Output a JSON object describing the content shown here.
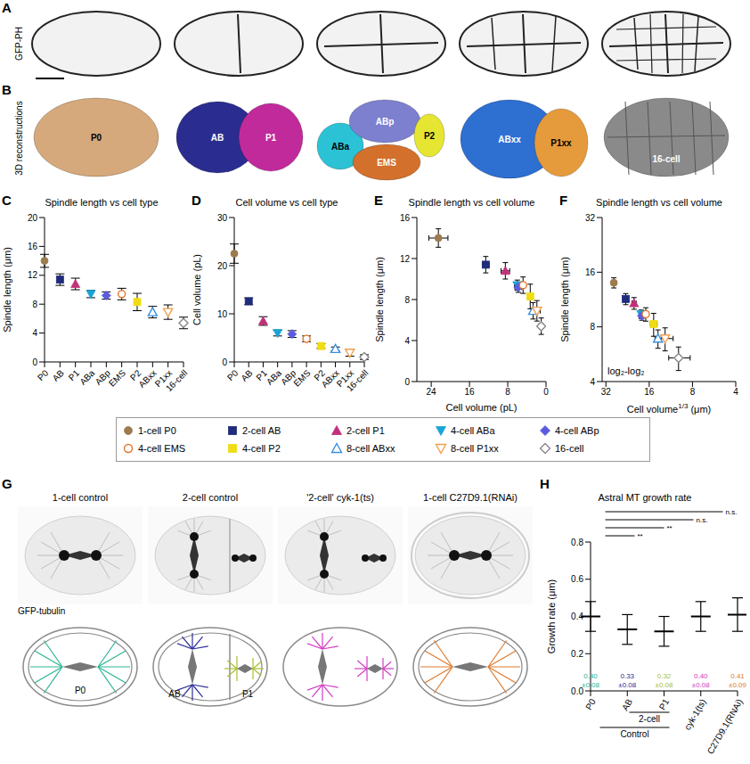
{
  "panel_letters": [
    "A",
    "B",
    "C",
    "D",
    "E",
    "F",
    "G",
    "H"
  ],
  "A": {
    "row_label": "GFP-PH"
  },
  "B": {
    "row_label": "3D reconstructions",
    "images": [
      [
        {
          "text": "P0",
          "color": "#d6a97c"
        }
      ],
      [
        {
          "text": "AB",
          "color": "#2a2d8f"
        },
        {
          "text": "P1",
          "color": "#c02a9b"
        }
      ],
      [
        {
          "text": "ABa",
          "color": "#2cc2d6"
        },
        {
          "text": "ABp",
          "color": "#7d80cf"
        },
        {
          "text": "EMS",
          "color": "#d3702b"
        },
        {
          "text": "P2",
          "color": "#e6e632"
        }
      ],
      [
        {
          "text": "ABxx",
          "color": "#2e6fd2"
        },
        {
          "text": "P1xx",
          "color": "#e59a3c"
        }
      ],
      [
        {
          "text": "16-cell",
          "color": "#8a8a8a"
        }
      ]
    ]
  },
  "legend": {
    "items": [
      {
        "name": "1-cell P0",
        "color": "#9c7b4f",
        "marker": "circle"
      },
      {
        "name": "2-cell AB",
        "color": "#1f2b7b",
        "marker": "square"
      },
      {
        "name": "2-cell P1",
        "color": "#c2307a",
        "marker": "triangle"
      },
      {
        "name": "4-cell ABa",
        "color": "#1aa3d6",
        "marker": "triangle-down"
      },
      {
        "name": "4-cell ABp",
        "color": "#5b5be0",
        "marker": "diamond"
      },
      {
        "name": "4-cell EMS",
        "color": "#e0742c",
        "marker": "circle-open"
      },
      {
        "name": "4-cell P2",
        "color": "#f0dc14",
        "marker": "square"
      },
      {
        "name": "8-cell ABxx",
        "color": "#3a8fe0",
        "marker": "triangle-open"
      },
      {
        "name": "8-cell P1xx",
        "color": "#f0a050",
        "marker": "triangle-down-open"
      },
      {
        "name": "16-cell",
        "color": "#888888",
        "marker": "diamond-open"
      }
    ]
  },
  "chart_data": [
    {
      "type": "scatter",
      "title": "Spindle length vs cell type",
      "ylabel": "Spindle length (μm)",
      "categories": [
        "P0",
        "AB",
        "P1",
        "ABa",
        "ABp",
        "EMS",
        "P2",
        "ABxx",
        "P1xx",
        "16-cell"
      ],
      "values": [
        14.0,
        11.4,
        10.8,
        9.4,
        9.2,
        9.4,
        8.3,
        6.9,
        6.9,
        5.4
      ],
      "errors": [
        0.9,
        0.8,
        0.8,
        0.5,
        0.5,
        0.8,
        1.2,
        0.8,
        1.0,
        0.8
      ],
      "ylim": [
        0,
        20
      ],
      "yticks": [
        0,
        4,
        8,
        12,
        16,
        20
      ]
    },
    {
      "type": "scatter",
      "title": "Cell volume vs cell type",
      "ylabel": "Cell volume (pL)",
      "categories": [
        "P0",
        "AB",
        "P1",
        "ABa",
        "ABp",
        "EMS",
        "P2",
        "ABxx",
        "P1xx",
        "16-cell"
      ],
      "values": [
        22.5,
        12.6,
        8.5,
        6.0,
        5.8,
        4.8,
        3.3,
        2.7,
        1.9,
        1.0
      ],
      "errors": [
        2.0,
        0.7,
        0.9,
        0.6,
        0.7,
        0.6,
        0.5,
        0.4,
        0.7,
        0.5
      ],
      "ylim": [
        0,
        30
      ],
      "yticks": [
        0,
        10,
        20,
        30
      ]
    },
    {
      "type": "scatter",
      "title": "Spindle length vs cell volume",
      "xlabel": "Cell volume (pL)",
      "ylabel": "Spindle length (μm)",
      "x": [
        22.5,
        12.6,
        8.5,
        6.0,
        5.8,
        4.8,
        3.3,
        2.7,
        1.9,
        1.0
      ],
      "x_err": [
        2.0,
        0.7,
        0.9,
        0.6,
        0.7,
        0.6,
        0.5,
        0.4,
        0.7,
        0.5
      ],
      "values": [
        14.0,
        11.4,
        10.8,
        9.4,
        9.2,
        9.4,
        8.3,
        6.9,
        6.9,
        5.4
      ],
      "y_err": [
        0.9,
        0.8,
        0.8,
        0.5,
        0.5,
        0.8,
        1.2,
        0.8,
        1.0,
        0.8
      ],
      "xlim": [
        27,
        0
      ],
      "xticks": [
        24,
        16,
        8,
        0
      ],
      "ylim": [
        0,
        16
      ],
      "yticks": [
        0,
        4,
        8,
        12,
        16
      ]
    },
    {
      "type": "scatter",
      "title": "Spindle length vs cell volume",
      "xlabel": {
        "text": "Cell volume",
        "superscript": "1/3",
        "unit": "(μm)"
      },
      "ylabel": "Spindle length (μm)",
      "annotation": "log₂-log₂",
      "log": true,
      "x": [
        28.2,
        23.3,
        20.4,
        18.2,
        18.0,
        16.9,
        14.9,
        13.9,
        12.4,
        10.0
      ],
      "x_err": [
        0.8,
        0.4,
        0.7,
        0.6,
        0.7,
        0.7,
        0.8,
        0.7,
        1.5,
        1.7
      ],
      "values": [
        14.0,
        11.4,
        10.8,
        9.4,
        9.2,
        9.4,
        8.3,
        6.9,
        6.9,
        5.4
      ],
      "y_err": [
        0.9,
        0.8,
        0.8,
        0.5,
        0.5,
        0.8,
        1.2,
        0.8,
        1.0,
        0.8
      ],
      "xlim": [
        34,
        4
      ],
      "xticks": [
        32,
        16,
        8,
        4
      ],
      "ylim": [
        4,
        32
      ],
      "yticks": [
        4,
        8,
        16,
        32
      ]
    },
    {
      "type": "scatter",
      "title": "Astral MT growth rate",
      "ylabel": "Growth rate (μm)",
      "marker": "line",
      "categories": [
        "P0",
        "AB",
        "P1",
        "cyk-1(ts)",
        "C27D9.1(RNAi)"
      ],
      "values": [
        0.4,
        0.33,
        0.32,
        0.4,
        0.41
      ],
      "errors": [
        0.08,
        0.08,
        0.08,
        0.08,
        0.09
      ],
      "value_labels": [
        "0.40",
        "0.33",
        "0.32",
        "0.40",
        "0.41"
      ],
      "error_labels": [
        "±0.08",
        "±0.08",
        "±0.08",
        "±0.08",
        "±0.09"
      ],
      "colors": [
        "#2bb596",
        "#2d2d9b",
        "#a9be2c",
        "#d23cc4",
        "#e07a2e"
      ],
      "ylim": [
        0,
        0.8
      ],
      "yticks": [
        {
          "value": 0,
          "label": "0.0"
        },
        {
          "value": 0.2,
          "label": "0.2"
        },
        {
          "value": 0.4,
          "label": "0.4"
        },
        {
          "value": 0.6,
          "label": "0.6"
        },
        {
          "value": 0.8,
          "label": "0.8"
        }
      ],
      "groups": [
        {
          "label": "2-cell",
          "from": "AB",
          "to": "P1"
        },
        {
          "label": "Control",
          "from": "P0",
          "to": "P1"
        }
      ],
      "comparisons": [
        {
          "from": "P0",
          "to": "C27D9.1(RNAi)",
          "label": "n.s."
        },
        {
          "from": "P0",
          "to": "cyk-1(ts)",
          "label": "n.s."
        },
        {
          "from": "P0",
          "to": "P1",
          "label": "**"
        },
        {
          "from": "P0",
          "to": "AB",
          "label": "**"
        }
      ]
    }
  ],
  "G": {
    "titles": [
      "1-cell control",
      "2-cell control",
      "'2-cell' cyk-1(ts)",
      "1-cell C27D9.1(RNAi)"
    ],
    "channel_label": "GFP-tubulin",
    "cell_labels": [
      "P0",
      "AB",
      "P1"
    ]
  }
}
